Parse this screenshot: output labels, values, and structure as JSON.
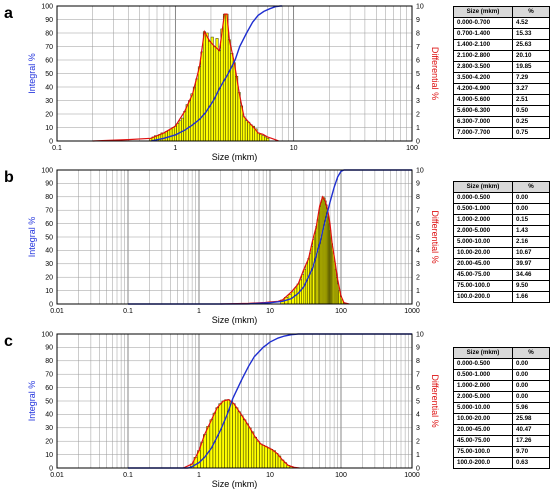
{
  "chart_data": [
    {
      "type": "bar",
      "panel": "a",
      "xscale": "log",
      "xlim": [
        0.1,
        100
      ],
      "xticks": [
        "0.1",
        "1",
        "10",
        "100"
      ],
      "xlabel": "Size (mkm)",
      "ylabel_left": "Integral %",
      "ylabel_right": "Differential %",
      "ylim_left": [
        0,
        100
      ],
      "ylim_right": [
        0,
        10
      ],
      "yticks_left": [
        "0",
        "10",
        "20",
        "30",
        "40",
        "50",
        "60",
        "70",
        "80",
        "90",
        "100"
      ],
      "yticks_right": [
        "0",
        "1",
        "2",
        "3",
        "4",
        "5",
        "6",
        "7",
        "8",
        "9",
        "10"
      ],
      "histogram": {
        "x": [
          0.62,
          0.65,
          0.68,
          0.71,
          0.74,
          0.77,
          0.8,
          0.84,
          0.88,
          0.92,
          0.96,
          1.0,
          1.05,
          1.1,
          1.15,
          1.2,
          1.26,
          1.32,
          1.38,
          1.45,
          1.52,
          1.6,
          1.68,
          1.76,
          1.85,
          1.95,
          2.05,
          2.15,
          2.25,
          2.36,
          2.48,
          2.6,
          2.73,
          2.86,
          3.0,
          3.15,
          3.3,
          3.46,
          3.63,
          3.8,
          3.98,
          4.17,
          4.37,
          4.58,
          4.8,
          5.03,
          5.27,
          5.52,
          5.78,
          6.05
        ],
        "y": [
          0.2,
          0.3,
          0.4,
          0.4,
          0.5,
          0.6,
          0.6,
          0.7,
          0.8,
          0.9,
          1.0,
          1.1,
          1.3,
          1.5,
          1.7,
          2.2,
          2.7,
          3.0,
          3.5,
          4.0,
          4.6,
          5.5,
          6.6,
          8.1,
          8.0,
          7.4,
          7.7,
          7.0,
          7.6,
          6.7,
          8.3,
          9.4,
          9.4,
          7.5,
          6.5,
          5.8,
          4.8,
          3.6,
          2.6,
          1.8,
          1.5,
          1.4,
          1.2,
          1.1,
          0.9,
          0.6,
          0.5,
          0.4,
          0.3,
          0.2
        ]
      },
      "differential_curve": {
        "x": [
          0.2,
          0.4,
          0.62,
          0.8,
          1.0,
          1.2,
          1.4,
          1.6,
          1.76,
          1.95,
          2.15,
          2.36,
          2.6,
          2.73,
          2.86,
          3.15,
          3.46,
          3.8,
          4.17,
          4.6,
          5.0,
          5.5,
          6.0,
          6.5,
          7.0,
          7.5
        ],
        "y": [
          0.0,
          0.1,
          0.2,
          0.6,
          1.1,
          2.2,
          3.5,
          5.5,
          8.1,
          7.4,
          7.0,
          6.7,
          9.4,
          9.4,
          7.5,
          5.8,
          3.6,
          1.8,
          1.4,
          1.0,
          0.6,
          0.5,
          0.3,
          0.2,
          0.1,
          0.0
        ]
      },
      "integral_curve": {
        "x": [
          0.62,
          0.8,
          1.0,
          1.2,
          1.4,
          1.6,
          1.8,
          2.1,
          2.4,
          2.8,
          3.2,
          3.5,
          4.0,
          4.5,
          5.0,
          5.6,
          6.3,
          7.0,
          7.7,
          8.0
        ],
        "y": [
          0,
          2,
          4.5,
          8,
          12,
          16,
          21,
          30,
          40,
          50,
          60,
          70,
          80,
          88,
          93,
          96,
          98,
          99.5,
          100,
          100
        ]
      },
      "table": {
        "headers": [
          "Size (mkm)",
          "%"
        ],
        "rows": [
          [
            "0.000-0.700",
            "4.52"
          ],
          [
            "0.700-1.400",
            "15.33"
          ],
          [
            "1.400-2.100",
            "25.63"
          ],
          [
            "2.100-2.800",
            "20.10"
          ],
          [
            "2.800-3.500",
            "19.85"
          ],
          [
            "3.500-4.200",
            "7.29"
          ],
          [
            "4.200-4.900",
            "3.27"
          ],
          [
            "4.900-5.600",
            "2.51"
          ],
          [
            "5.600-6.300",
            "0.50"
          ],
          [
            "6.300-7.000",
            "0.25"
          ],
          [
            "7.000-7.700",
            "0.75"
          ]
        ]
      }
    },
    {
      "type": "bar",
      "panel": "b",
      "xscale": "log",
      "xlim": [
        0.01,
        1000
      ],
      "xticks": [
        "0.01",
        "0.1",
        "1",
        "10",
        "100",
        "1000"
      ],
      "xlabel": "Size (mkm)",
      "ylabel_left": "Integral %",
      "ylabel_right": "Differential %",
      "ylim_left": [
        0,
        100
      ],
      "ylim_right": [
        0,
        10
      ],
      "yticks_left": [
        "0",
        "10",
        "20",
        "30",
        "40",
        "50",
        "60",
        "70",
        "80",
        "90",
        "100"
      ],
      "yticks_right": [
        "0",
        "1",
        "2",
        "3",
        "4",
        "5",
        "6",
        "7",
        "8",
        "9",
        "10"
      ],
      "histogram": {
        "x": [
          15,
          17,
          19,
          21,
          23,
          25,
          27,
          29,
          31,
          33,
          35,
          37,
          39,
          41,
          43,
          45,
          47,
          49,
          51,
          53,
          55,
          57,
          59,
          61,
          63,
          65,
          67,
          69,
          71,
          73,
          75,
          78,
          81,
          84,
          87,
          90,
          95,
          100,
          105,
          110
        ],
        "y": [
          0.3,
          0.5,
          0.7,
          0.9,
          1.2,
          1.5,
          1.8,
          2.2,
          2.6,
          3.0,
          3.4,
          3.8,
          4.3,
          4.8,
          5.3,
          5.8,
          6.3,
          6.8,
          7.3,
          7.7,
          8.0,
          8.0,
          7.9,
          7.7,
          7.4,
          7.0,
          6.5,
          6.0,
          5.5,
          5.0,
          4.5,
          3.8,
          3.2,
          2.6,
          2.0,
          1.5,
          1.0,
          0.6,
          0.3,
          0.1
        ]
      },
      "differential_curve": {
        "x": [
          2,
          5,
          8,
          10,
          13,
          15,
          20,
          25,
          30,
          35,
          40,
          45,
          50,
          55,
          60,
          65,
          70,
          75,
          80,
          90,
          100,
          110,
          130
        ],
        "y": [
          0,
          0.05,
          0.1,
          0.15,
          0.2,
          0.3,
          0.9,
          1.5,
          2.6,
          3.4,
          4.8,
          5.8,
          7.3,
          8.0,
          7.7,
          7.0,
          6.0,
          4.5,
          3.6,
          1.8,
          0.6,
          0.1,
          0
        ]
      },
      "integral_curve": {
        "x": [
          0.1,
          1,
          2,
          5,
          10,
          15,
          20,
          25,
          30,
          40,
          50,
          60,
          70,
          80,
          90,
          100,
          110,
          130,
          1000
        ],
        "y": [
          0,
          0,
          0,
          0.1,
          1,
          2,
          4,
          8,
          13,
          27,
          45,
          62,
          76,
          87,
          95,
          99,
          100,
          100,
          100
        ]
      },
      "table": {
        "headers": [
          "Size (mkm)",
          "%"
        ],
        "rows": [
          [
            "0.000-0.500",
            "0.00"
          ],
          [
            "0.500-1.000",
            "0.00"
          ],
          [
            "1.000-2.000",
            "0.15"
          ],
          [
            "2.000-5.000",
            "1.43"
          ],
          [
            "5.000-10.00",
            "2.16"
          ],
          [
            "10.00-20.00",
            "10.67"
          ],
          [
            "20.00-45.00",
            "39.97"
          ],
          [
            "45.00-75.00",
            "34.46"
          ],
          [
            "75.00-100.0",
            "9.50"
          ],
          [
            "100.0-200.0",
            "1.66"
          ]
        ]
      }
    },
    {
      "type": "bar",
      "panel": "c",
      "xscale": "log",
      "xlim": [
        0.01,
        1000
      ],
      "xticks": [
        "0.01",
        "0.1",
        "1",
        "10",
        "100",
        "1000"
      ],
      "xlabel": "Size (mkm)",
      "ylabel_left": "Integral %",
      "ylabel_right": "Differential %",
      "ylim_left": [
        0,
        100
      ],
      "ylim_right": [
        0,
        10
      ],
      "yticks_left": [
        "0",
        "10",
        "20",
        "30",
        "40",
        "50",
        "60",
        "70",
        "80",
        "90",
        "100"
      ],
      "yticks_right": [
        "0",
        "1",
        "2",
        "3",
        "4",
        "5",
        "6",
        "7",
        "8",
        "9",
        "10"
      ],
      "histogram": {
        "x": [
          0.8,
          0.9,
          1.0,
          1.1,
          1.2,
          1.35,
          1.5,
          1.65,
          1.8,
          2.0,
          2.2,
          2.4,
          2.6,
          2.85,
          3.1,
          3.4,
          3.7,
          4.0,
          4.4,
          4.8,
          5.2,
          5.7,
          6.2,
          6.8,
          7.4,
          8.1,
          8.8,
          9.6,
          10.5,
          11.5,
          12.5,
          13.5,
          15,
          16.5,
          18,
          20,
          22
        ],
        "y": [
          0.3,
          0.8,
          1.3,
          1.9,
          2.5,
          3.1,
          3.6,
          4.1,
          4.5,
          4.8,
          5.0,
          5.1,
          5.1,
          5.0,
          4.8,
          4.5,
          4.2,
          3.9,
          3.6,
          3.3,
          3.0,
          2.7,
          2.3,
          2.0,
          1.8,
          1.7,
          1.6,
          1.5,
          1.4,
          1.3,
          1.1,
          0.9,
          0.6,
          0.4,
          0.2,
          0.1,
          0.05
        ]
      },
      "differential_curve": {
        "x": [
          0.6,
          0.8,
          1.0,
          1.2,
          1.5,
          1.8,
          2.2,
          2.6,
          3.1,
          3.7,
          4.4,
          5.2,
          6.2,
          7.4,
          8.8,
          10.5,
          12.5,
          15,
          18,
          22,
          26
        ],
        "y": [
          0,
          0.3,
          1.3,
          2.5,
          3.6,
          4.5,
          5.0,
          5.1,
          4.8,
          4.2,
          3.6,
          3.0,
          2.3,
          1.8,
          1.6,
          1.4,
          1.1,
          0.6,
          0.2,
          0.05,
          0
        ]
      },
      "integral_curve": {
        "x": [
          0.1,
          0.5,
          0.7,
          0.8,
          1.0,
          1.2,
          1.5,
          2.0,
          2.5,
          3.0,
          4.0,
          5.0,
          6.0,
          8.0,
          10,
          13,
          16,
          20,
          25,
          30,
          1000
        ],
        "y": [
          0,
          0,
          0,
          1,
          4,
          8,
          15,
          28,
          40,
          52,
          66,
          76,
          83,
          90,
          94,
          97,
          98.5,
          99.5,
          100,
          100,
          100
        ]
      },
      "table": {
        "headers": [
          "Size (mkm)",
          "%"
        ],
        "rows": [
          [
            "0.000-0.500",
            "0.00"
          ],
          [
            "0.500-1.000",
            "0.00"
          ],
          [
            "1.000-2.000",
            "0.00"
          ],
          [
            "2.000-5.000",
            "0.00"
          ],
          [
            "5.000-10.00",
            "5.96"
          ],
          [
            "10.00-20.00",
            "25.98"
          ],
          [
            "20.00-45.00",
            "40.47"
          ],
          [
            "45.00-75.00",
            "17.26"
          ],
          [
            "75.00-100.0",
            "9.70"
          ],
          [
            "100.0-200.0",
            "0.63"
          ]
        ]
      }
    }
  ],
  "colors": {
    "integral": "#1f2fd0",
    "differential": "#e01010",
    "bar_fill": "#ffff00",
    "bar_stroke": "#333300",
    "left_label": "#2233dd",
    "right_label": "#dd1111"
  }
}
